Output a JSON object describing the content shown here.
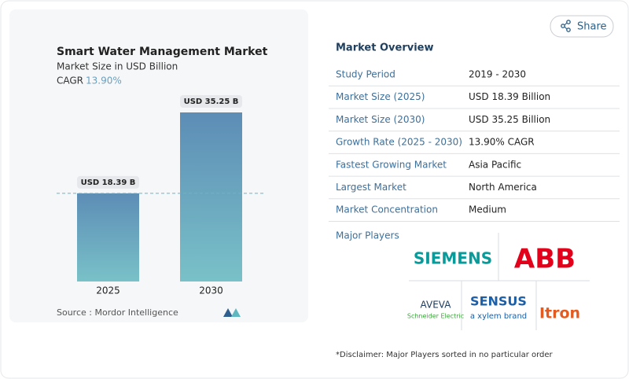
{
  "chart_data": {
    "type": "bar",
    "title": "Smart Water Management Market",
    "subtitle": "Market Size in USD Billion",
    "cagr_label": "CAGR",
    "cagr_value": "13.90%",
    "categories": [
      "2025",
      "2030"
    ],
    "values": [
      18.39,
      35.25
    ],
    "value_labels": [
      "USD 18.39 B",
      "USD 35.25 B"
    ],
    "source": "Source : Mordor Intelligence"
  },
  "share": "Share",
  "overview": {
    "title": "Market Overview",
    "rows": [
      [
        "Study Period",
        "2019 - 2030"
      ],
      [
        "Market Size (2025)",
        "USD 18.39 Billion"
      ],
      [
        "Market Size (2030)",
        "USD 35.25 Billion"
      ],
      [
        "Growth Rate (2025 - 2030)",
        "13.90% CAGR"
      ],
      [
        "Fastest Growing Market",
        "Asia Pacific"
      ],
      [
        "Largest Market",
        "North America"
      ],
      [
        "Market Concentration",
        "Medium"
      ]
    ]
  },
  "players": {
    "title": "Major Players",
    "logos": [
      {
        "name": "SIEMENS"
      },
      {
        "name": "ABB"
      },
      {
        "name": "AVEVA",
        "tagline": "Schneider Electric"
      },
      {
        "name": "SENSUS",
        "tagline": "a xylem brand"
      },
      {
        "name": "Itron"
      }
    ]
  },
  "disclaimer": "*Disclaimer: Major Players sorted in no particular order"
}
